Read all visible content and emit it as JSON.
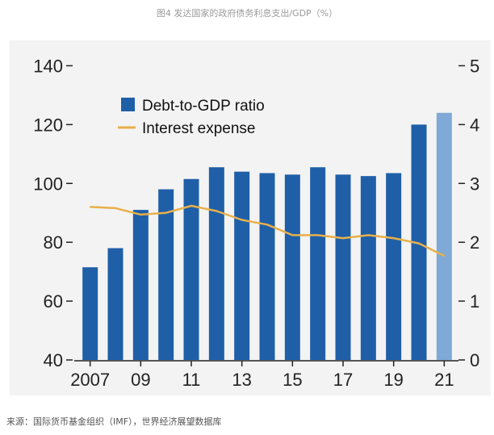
{
  "title": "图4 发达国家的政府债务利息支出/GDP（%）",
  "source": "来源：国际货币基金组织（IMF），世界经济展望数据库",
  "chart_data": {
    "type": "bar",
    "categories": [
      "2007",
      "2008",
      "2009",
      "2010",
      "2011",
      "2012",
      "2013",
      "2014",
      "2015",
      "2016",
      "2017",
      "2018",
      "2019",
      "2020",
      "2021"
    ],
    "x_tick_labels": [
      "2007",
      "09",
      "11",
      "13",
      "15",
      "17",
      "19",
      "21"
    ],
    "series": [
      {
        "name": "Debt-to-GDP ratio",
        "type": "bar",
        "axis": "left",
        "color": "#1f5fa8",
        "highlight_last_color": "#7fa9d6",
        "values": [
          71.5,
          78,
          91,
          98,
          101.5,
          105.5,
          104,
          103.5,
          103,
          105.5,
          103,
          102.5,
          103.5,
          120,
          124
        ]
      },
      {
        "name": "Interest expense",
        "type": "line",
        "axis": "right",
        "color": "#e8b04a",
        "values": [
          2.6,
          2.58,
          2.47,
          2.5,
          2.62,
          2.53,
          2.38,
          2.3,
          2.12,
          2.12,
          2.07,
          2.12,
          2.07,
          1.98,
          1.77
        ]
      }
    ],
    "y_left": {
      "ticks": [
        40,
        60,
        80,
        100,
        120,
        140
      ],
      "min": 40,
      "max": 150
    },
    "y_right": {
      "ticks": [
        0,
        1,
        2,
        3,
        4,
        5
      ],
      "min": 0,
      "max": 5.5
    },
    "legend": {
      "position": "top-left"
    },
    "grid": false
  }
}
